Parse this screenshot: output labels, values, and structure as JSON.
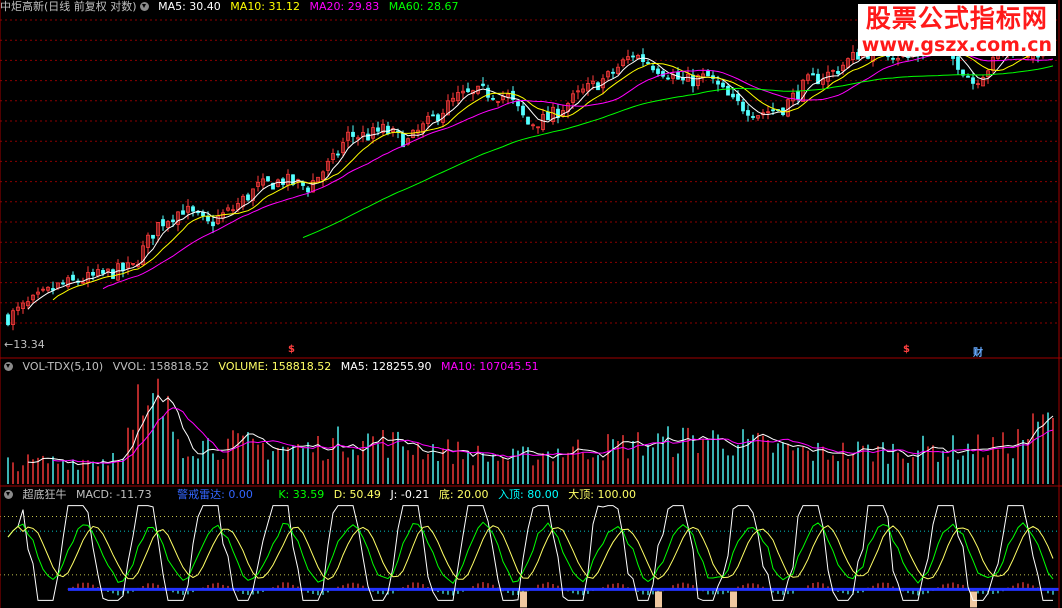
{
  "watermark": {
    "line1": "股票公式指标网",
    "line2": "www.gszx.com.cn"
  },
  "price_panel": {
    "title": "中炬高新(日线 前复权 对数)",
    "ma": [
      {
        "label": "MA5: 30.40",
        "color": "#ffffff"
      },
      {
        "label": "MA10: 31.12",
        "color": "#ffff00"
      },
      {
        "label": "MA20: 29.83",
        "color": "#ff00ff"
      },
      {
        "label": "MA60: 28.67",
        "color": "#00ff00"
      }
    ],
    "min_label": "←13.34",
    "event_marks": [
      {
        "text": "$",
        "color": "#ff4040"
      },
      {
        "text": "$",
        "color": "#ff4040"
      },
      {
        "text": "财",
        "color": "#66aaff"
      }
    ]
  },
  "volume_panel": {
    "title": "VOL-TDX(5,10)",
    "items": [
      {
        "label": "VVOL: 158818.52",
        "color": "#c0c0c0"
      },
      {
        "label": "VOLUME: 158818.52",
        "color": "#ffff66"
      },
      {
        "label": "MA5: 128255.90",
        "color": "#ffffff"
      },
      {
        "label": "MA10: 107045.51",
        "color": "#ff00ff"
      }
    ]
  },
  "indicator_panel": {
    "title": "超底狂牛",
    "items": [
      {
        "label": "MACD: -11.73",
        "color": "#c0c0c0"
      },
      {
        "label": "警戒雷达: 0.00",
        "color": "#3366ff"
      },
      {
        "label": "K: 33.59",
        "color": "#00ff00"
      },
      {
        "label": "D: 50.49",
        "color": "#ffff66"
      },
      {
        "label": "J: -0.21",
        "color": "#ffffff"
      },
      {
        "label": "底: 20.00",
        "color": "#ffff66"
      },
      {
        "label": "入顶: 80.00",
        "color": "#00ffff"
      },
      {
        "label": "大顶: 100.00",
        "color": "#ffff66"
      }
    ]
  },
  "colors": {
    "up": "#ff3b3b",
    "down": "#54ffff",
    "grid": "#8b0000",
    "ma5": "#ffffff",
    "ma10": "#ffff00",
    "ma20": "#ff00ff",
    "ma60": "#00ff00"
  },
  "chart_data": [
    {
      "type": "line",
      "title": "中炬高新(日线 前复权 对数)",
      "x_count": 210,
      "price_keypoints": [
        [
          0,
          13.5
        ],
        [
          10,
          15
        ],
        [
          25,
          16
        ],
        [
          27,
          17
        ],
        [
          30,
          18.5
        ],
        [
          35,
          19.5
        ],
        [
          40,
          18.5
        ],
        [
          45,
          19.5
        ],
        [
          50,
          21
        ],
        [
          55,
          21.5
        ],
        [
          60,
          21
        ],
        [
          65,
          23
        ],
        [
          68,
          25
        ],
        [
          72,
          25
        ],
        [
          75,
          25.5
        ],
        [
          80,
          24.5
        ],
        [
          85,
          26.5
        ],
        [
          90,
          28.5
        ],
        [
          95,
          29
        ],
        [
          100,
          28.5
        ],
        [
          104,
          26
        ],
        [
          108,
          26.5
        ],
        [
          115,
          29
        ],
        [
          120,
          30.5
        ],
        [
          125,
          33
        ],
        [
          130,
          31.5
        ],
        [
          135,
          30
        ],
        [
          140,
          30.5
        ],
        [
          145,
          28
        ],
        [
          150,
          27
        ],
        [
          155,
          27.5
        ],
        [
          160,
          30
        ],
        [
          165,
          31
        ],
        [
          170,
          33
        ],
        [
          175,
          33.5
        ],
        [
          180,
          32.5
        ],
        [
          185,
          34
        ],
        [
          190,
          32
        ],
        [
          193,
          30
        ],
        [
          197,
          32
        ],
        [
          200,
          34
        ],
        [
          205,
          33
        ],
        [
          209,
          34
        ]
      ],
      "ma_values": {
        "MA5": 30.4,
        "MA10": 31.12,
        "MA20": 29.83,
        "MA60": 28.67
      },
      "min_price": 13.34
    },
    {
      "type": "bar",
      "title": "VOL-TDX(5,10)",
      "vvol": 158818.52,
      "volume": 158818.52,
      "ma5": 128255.9,
      "ma10": 107045.51,
      "volume_keypoints": [
        [
          0,
          50000
        ],
        [
          20,
          60000
        ],
        [
          27,
          150000
        ],
        [
          30,
          200000
        ],
        [
          35,
          100000
        ],
        [
          60,
          85000
        ],
        [
          70,
          110000
        ],
        [
          100,
          60000
        ],
        [
          110,
          80000
        ],
        [
          140,
          110000
        ],
        [
          160,
          75000
        ],
        [
          200,
          90000
        ],
        [
          209,
          158818.52
        ]
      ],
      "ylim": [
        0,
        260000
      ]
    },
    {
      "type": "line",
      "title": "超底狂牛",
      "levels": {
        "底": 20.0,
        "入顶": 80.0,
        "大顶": 100.0
      },
      "current": {
        "MACD": -11.73,
        "警戒雷达": 0.0,
        "K": 33.59,
        "D": 50.49,
        "J": -0.21
      },
      "ylim": [
        -20,
        120
      ]
    }
  ]
}
